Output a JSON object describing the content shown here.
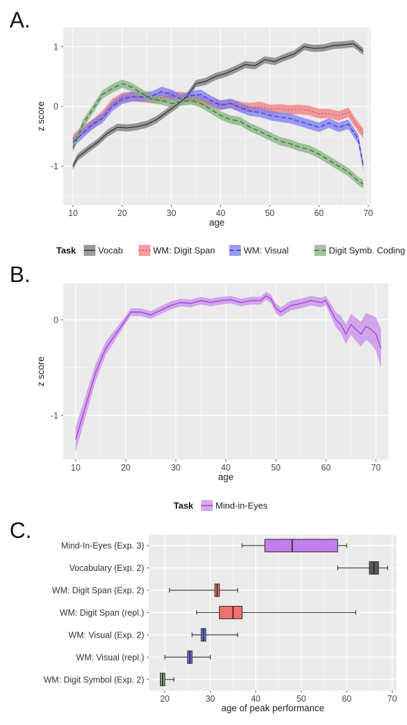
{
  "chart_data": [
    {
      "panel": "A.",
      "type": "line",
      "xlabel": "age",
      "ylabel": "z score",
      "xlim": [
        8,
        70.5
      ],
      "ylim": [
        -1.65,
        1.32
      ],
      "x_ticks": [
        "10",
        "20",
        "30",
        "40",
        "50",
        "60",
        "70"
      ],
      "y_ticks": [
        "1",
        "0",
        "-1"
      ],
      "grid": true,
      "legend": {
        "title": "Task",
        "placement": "bottom"
      },
      "series": [
        {
          "name": "Vocab",
          "color": "#333333",
          "band_color": "#7a7a7a",
          "dash": "solid",
          "band": 0.06,
          "points": [
            [
              10,
              -1.0
            ],
            [
              11,
              -0.85
            ],
            [
              13,
              -0.72
            ],
            [
              15,
              -0.6
            ],
            [
              17,
              -0.45
            ],
            [
              19,
              -0.35
            ],
            [
              21,
              -0.36
            ],
            [
              23,
              -0.34
            ],
            [
              25,
              -0.3
            ],
            [
              27,
              -0.22
            ],
            [
              29,
              -0.1
            ],
            [
              31,
              0.02
            ],
            [
              33,
              0.15
            ],
            [
              35,
              0.38
            ],
            [
              37,
              0.42
            ],
            [
              39,
              0.5
            ],
            [
              41,
              0.55
            ],
            [
              43,
              0.62
            ],
            [
              45,
              0.7
            ],
            [
              47,
              0.68
            ],
            [
              49,
              0.78
            ],
            [
              51,
              0.75
            ],
            [
              53,
              0.82
            ],
            [
              55,
              0.88
            ],
            [
              57,
              1.0
            ],
            [
              59,
              0.97
            ],
            [
              61,
              0.98
            ],
            [
              63,
              1.02
            ],
            [
              65,
              1.03
            ],
            [
              67,
              1.05
            ],
            [
              69,
              0.92
            ]
          ]
        },
        {
          "name": "WM: Digit Span",
          "color": "#e0484f",
          "band_color": "#f07c7c",
          "dash": "2 3",
          "band": 0.08,
          "points": [
            [
              10,
              -0.55
            ],
            [
              12,
              -0.4
            ],
            [
              14,
              -0.3
            ],
            [
              16,
              -0.15
            ],
            [
              18,
              0.05
            ],
            [
              20,
              0.15
            ],
            [
              22,
              0.17
            ],
            [
              24,
              0.15
            ],
            [
              26,
              0.13
            ],
            [
              28,
              0.15
            ],
            [
              30,
              0.17
            ],
            [
              32,
              0.16
            ],
            [
              34,
              0.14
            ],
            [
              36,
              0.1
            ],
            [
              38,
              0.05
            ],
            [
              40,
              0.02
            ],
            [
              42,
              0.05
            ],
            [
              44,
              0.0
            ],
            [
              46,
              -0.02
            ],
            [
              48,
              0.0
            ],
            [
              50,
              -0.05
            ],
            [
              52,
              -0.04
            ],
            [
              54,
              -0.06
            ],
            [
              56,
              -0.05
            ],
            [
              58,
              -0.07
            ],
            [
              60,
              -0.12
            ],
            [
              62,
              -0.12
            ],
            [
              64,
              -0.16
            ],
            [
              66,
              -0.1
            ],
            [
              68,
              -0.35
            ],
            [
              69,
              -0.45
            ]
          ]
        },
        {
          "name": "WM: Visual",
          "color": "#3a3ae0",
          "band_color": "#7c7cf0",
          "dash": "7 3",
          "band": 0.08,
          "points": [
            [
              10,
              -0.6
            ],
            [
              12,
              -0.45
            ],
            [
              14,
              -0.3
            ],
            [
              16,
              -0.2
            ],
            [
              18,
              0.0
            ],
            [
              20,
              0.12
            ],
            [
              22,
              0.16
            ],
            [
              24,
              0.16
            ],
            [
              26,
              0.17
            ],
            [
              28,
              0.25
            ],
            [
              30,
              0.2
            ],
            [
              32,
              0.12
            ],
            [
              34,
              0.18
            ],
            [
              36,
              0.2
            ],
            [
              38,
              0.1
            ],
            [
              40,
              0.02
            ],
            [
              42,
              0.05
            ],
            [
              44,
              -0.02
            ],
            [
              46,
              -0.08
            ],
            [
              48,
              -0.1
            ],
            [
              50,
              -0.15
            ],
            [
              52,
              -0.18
            ],
            [
              54,
              -0.2
            ],
            [
              56,
              -0.25
            ],
            [
              58,
              -0.3
            ],
            [
              60,
              -0.35
            ],
            [
              62,
              -0.28
            ],
            [
              64,
              -0.35
            ],
            [
              66,
              -0.3
            ],
            [
              68,
              -0.55
            ],
            [
              69,
              -1.0
            ]
          ]
        },
        {
          "name": "Digit Symb. Coding",
          "color": "#3e6e3a",
          "band_color": "#83b07e",
          "dash": "7 4",
          "band": 0.07,
          "points": [
            [
              10,
              -0.7
            ],
            [
              12,
              -0.3
            ],
            [
              14,
              -0.05
            ],
            [
              16,
              0.2
            ],
            [
              18,
              0.3
            ],
            [
              20,
              0.38
            ],
            [
              22,
              0.32
            ],
            [
              24,
              0.22
            ],
            [
              26,
              0.12
            ],
            [
              28,
              0.1
            ],
            [
              30,
              0.05
            ],
            [
              32,
              0.08
            ],
            [
              34,
              0.1
            ],
            [
              36,
              0.05
            ],
            [
              38,
              -0.05
            ],
            [
              40,
              -0.15
            ],
            [
              42,
              -0.22
            ],
            [
              44,
              -0.25
            ],
            [
              46,
              -0.35
            ],
            [
              48,
              -0.42
            ],
            [
              50,
              -0.5
            ],
            [
              52,
              -0.58
            ],
            [
              54,
              -0.62
            ],
            [
              56,
              -0.68
            ],
            [
              58,
              -0.72
            ],
            [
              60,
              -0.8
            ],
            [
              62,
              -0.9
            ],
            [
              64,
              -1.0
            ],
            [
              66,
              -1.1
            ],
            [
              68,
              -1.25
            ],
            [
              69,
              -1.3
            ]
          ]
        }
      ]
    },
    {
      "panel": "B.",
      "type": "line",
      "xlabel": "age",
      "ylabel": "z score",
      "xlim": [
        7.5,
        72.5
      ],
      "ylim": [
        -1.46,
        0.38
      ],
      "x_ticks": [
        "10",
        "20",
        "30",
        "40",
        "50",
        "60",
        "70"
      ],
      "y_ticks": [
        "0",
        "-1"
      ],
      "grid": true,
      "legend": {
        "title": "Task",
        "placement": "bottom"
      },
      "series": [
        {
          "name": "Mind-in-Eyes",
          "color": "#a040e0",
          "band_color": "#c88ce8",
          "dash": "solid",
          "points": [
            [
              10,
              -1.25
            ],
            [
              12,
              -0.9
            ],
            [
              14,
              -0.55
            ],
            [
              16,
              -0.3
            ],
            [
              18,
              -0.15
            ],
            [
              20,
              0.0
            ],
            [
              21,
              0.08
            ],
            [
              23,
              0.08
            ],
            [
              25,
              0.05
            ],
            [
              27,
              0.1
            ],
            [
              29,
              0.15
            ],
            [
              31,
              0.18
            ],
            [
              33,
              0.17
            ],
            [
              35,
              0.2
            ],
            [
              37,
              0.18
            ],
            [
              39,
              0.2
            ],
            [
              41,
              0.21
            ],
            [
              43,
              0.18
            ],
            [
              45,
              0.2
            ],
            [
              47,
              0.2
            ],
            [
              48,
              0.25
            ],
            [
              49,
              0.22
            ],
            [
              50,
              0.12
            ],
            [
              51,
              0.08
            ],
            [
              53,
              0.15
            ],
            [
              55,
              0.17
            ],
            [
              57,
              0.2
            ],
            [
              59,
              0.18
            ],
            [
              60,
              0.2
            ],
            [
              61,
              0.1
            ],
            [
              62,
              0.0
            ],
            [
              63,
              -0.05
            ],
            [
              64,
              -0.15
            ],
            [
              65,
              -0.05
            ],
            [
              66,
              -0.1
            ],
            [
              67,
              -0.15
            ],
            [
              68,
              -0.07
            ],
            [
              69,
              -0.1
            ],
            [
              70,
              -0.15
            ],
            [
              71,
              -0.3
            ]
          ],
          "band": [
            [
              10,
              0.13
            ],
            [
              16,
              0.07
            ],
            [
              20,
              0.04
            ],
            [
              30,
              0.04
            ],
            [
              48,
              0.04
            ],
            [
              50,
              0.05
            ],
            [
              60,
              0.05
            ],
            [
              62,
              0.08
            ],
            [
              66,
              0.12
            ],
            [
              69,
              0.15
            ],
            [
              71,
              0.2
            ]
          ]
        }
      ]
    },
    {
      "panel": "C.",
      "type": "box",
      "xlabel": "age of peak performance",
      "xlim": [
        16.5,
        71
      ],
      "x_ticks": [
        "20",
        "30",
        "40",
        "50",
        "60",
        "70"
      ],
      "grid": true,
      "boxes": [
        {
          "label": "Mind-In-Eyes (Exp. 3)",
          "color": "#c27dee",
          "min": 37,
          "q1": 42,
          "median": 48,
          "q3": 58,
          "max": 60
        },
        {
          "label": "Vocabulary (Exp. 2)",
          "color": "#5a5a5a",
          "min": 58,
          "q1": 65,
          "median": 66,
          "q3": 67,
          "max": 69
        },
        {
          "label": "WM: Digit Span (Exp. 2)",
          "color": "#f07070",
          "min": 21,
          "q1": 31,
          "median": 31.5,
          "q3": 32,
          "max": 36
        },
        {
          "label": "WM: Digit Span (repl.)",
          "color": "#f07070",
          "min": 27,
          "q1": 32,
          "median": 35,
          "q3": 37,
          "max": 62
        },
        {
          "label": "WM: Visual (Exp. 2)",
          "color": "#7070ee",
          "min": 26,
          "q1": 28,
          "median": 28.5,
          "q3": 29,
          "max": 36
        },
        {
          "label": "WM: Visual (repl.)",
          "color": "#7070ee",
          "min": 20,
          "q1": 25,
          "median": 25.5,
          "q3": 26,
          "max": 30
        },
        {
          "label": "WM: Digit Symbol (Exp. 2)",
          "color": "#80ad7a",
          "min": 19,
          "q1": 19,
          "median": 19.5,
          "q3": 20,
          "max": 22
        }
      ]
    }
  ]
}
